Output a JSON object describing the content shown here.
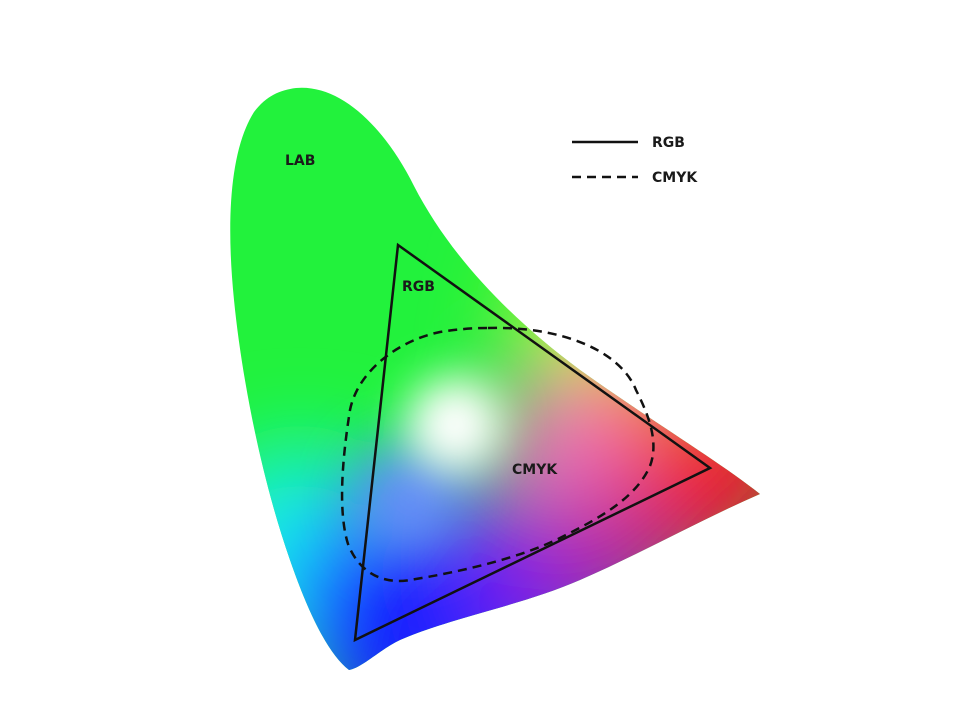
{
  "regions": {
    "lab_label": "LAB",
    "rgb_label": "RGB",
    "cmyk_label": "CMYK"
  },
  "legend": {
    "rgb": {
      "label": "RGB",
      "line_style": "solid"
    },
    "cmyk": {
      "label": "CMYK",
      "line_style": "dashed"
    }
  },
  "colors": {
    "background": "#ffffff",
    "outline": "#111111",
    "label_text": "#1a1a1a",
    "spectrum_green": "#22f23c",
    "spectrum_yellow": "#e8f21a",
    "spectrum_orange": "#ff7a1a",
    "spectrum_red": "#ee1030",
    "spectrum_magenta": "#b01aa0",
    "spectrum_purple": "#7a1af0",
    "spectrum_blue": "#1420ff",
    "spectrum_cyan": "#18f0f0",
    "white_point": "#ffffff"
  }
}
